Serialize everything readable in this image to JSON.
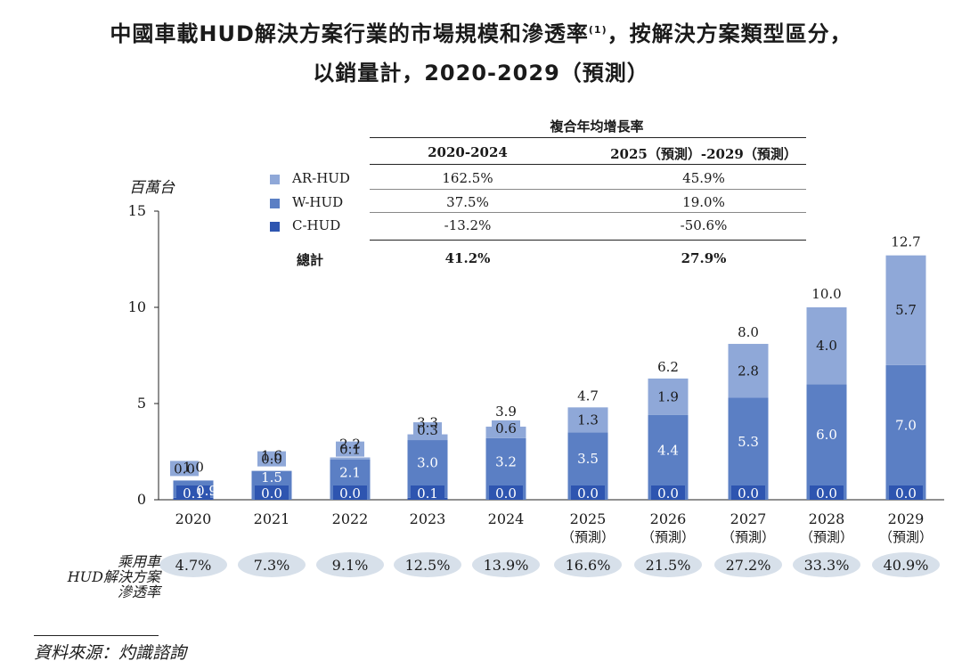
{
  "title_line1": "中國車載HUD解決方案行業的市場規模和滲透率",
  "title_note": "(1)",
  "title_line1_tail": "，按解決方案類型區分，",
  "title_line2": "以銷量計，2020-2029（預測）",
  "unit": "百萬台",
  "cagr": {
    "header": "複合年均增長率",
    "col1": "2020-2024",
    "col2": "2025（預測）-2029（預測）",
    "rows": [
      {
        "label": "AR-HUD",
        "v1": "162.5%",
        "v2": "45.9%"
      },
      {
        "label": "W-HUD",
        "v1": "37.5%",
        "v2": "19.0%"
      },
      {
        "label": "C-HUD",
        "v1": "-13.2%",
        "v2": "-50.6%"
      }
    ],
    "total_label": "總計",
    "total_v1": "41.2%",
    "total_v2": "27.9%"
  },
  "penetration_label": [
    "乘用車",
    "HUD解決方案",
    "滲透率"
  ],
  "source": "資料來源：灼識諮詢",
  "colors": {
    "ar": "#8fa8d8",
    "w": "#5b7fc4",
    "c": "#2e55b0",
    "pill": "#d7e0ea"
  },
  "chart_data": {
    "type": "bar",
    "stacked": true,
    "categories": [
      "2020",
      "2021",
      "2022",
      "2023",
      "2024",
      "2025",
      "2026",
      "2027",
      "2028",
      "2029"
    ],
    "category_sublabels": [
      "",
      "",
      "",
      "",
      "",
      "（預測）",
      "（預測）",
      "（預測）",
      "（預測）",
      "（預測）"
    ],
    "series": [
      {
        "name": "C-HUD",
        "values": [
          0.1,
          0.0,
          0.0,
          0.1,
          0.0,
          0.0,
          0.0,
          0.0,
          0.0,
          0.0
        ],
        "labels": [
          "0.1",
          "0.0",
          "0.0",
          "0.1",
          "0.0",
          "0.0",
          "0.0",
          "0.0",
          "0.0",
          "0.0"
        ]
      },
      {
        "name": "W-HUD",
        "values": [
          0.9,
          1.5,
          2.1,
          3.0,
          3.2,
          3.5,
          4.4,
          5.3,
          6.0,
          7.0
        ],
        "labels": [
          "0.9",
          "1.5",
          "2.1",
          "3.0",
          "3.2",
          "3.5",
          "4.4",
          "5.3",
          "6.0",
          "7.0"
        ]
      },
      {
        "name": "AR-HUD",
        "values": [
          0.0,
          0.0,
          0.1,
          0.3,
          0.6,
          1.3,
          1.9,
          2.8,
          4.0,
          5.7
        ],
        "labels": [
          "0.0",
          "0.0",
          "0.1",
          "0.3",
          "0.6",
          "1.3",
          "1.9",
          "2.8",
          "4.0",
          "5.7"
        ]
      }
    ],
    "totals": [
      1.0,
      1.6,
      2.2,
      3.3,
      3.9,
      4.7,
      6.2,
      8.0,
      10.0,
      12.7
    ],
    "total_labels": [
      "1.0",
      "1.6",
      "2.2",
      "3.3",
      "3.9",
      "4.7",
      "6.2",
      "8.0",
      "10.0",
      "12.7"
    ],
    "penetration_rates": [
      "4.7%",
      "7.3%",
      "9.1%",
      "12.5%",
      "13.9%",
      "16.6%",
      "21.5%",
      "27.2%",
      "33.3%",
      "40.9%"
    ],
    "ylim": [
      0,
      15
    ],
    "yticks": [
      0,
      5,
      10,
      15
    ],
    "ylabel": "百萬台"
  }
}
